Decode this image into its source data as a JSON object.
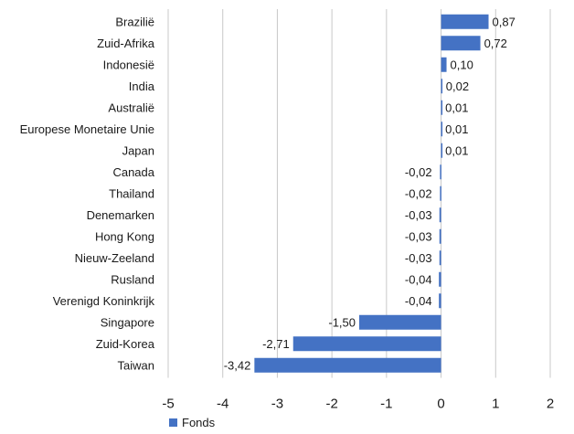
{
  "chart_data": {
    "type": "bar",
    "orientation": "horizontal",
    "categories": [
      "Brazilië",
      "Zuid-Afrika",
      "Indonesië",
      "India",
      "Australië",
      "Europese Monetaire Unie",
      "Japan",
      "Canada",
      "Thailand",
      "Denemarken",
      "Hong Kong",
      "Nieuw-Zeeland",
      "Rusland",
      "Verenigd Koninkrijk",
      "Singapore",
      "Zuid-Korea",
      "Taiwan"
    ],
    "series": [
      {
        "name": "Fonds",
        "color": "#4472c4",
        "values": [
          0.87,
          0.72,
          0.1,
          0.02,
          0.01,
          0.01,
          0.01,
          -0.02,
          -0.02,
          -0.03,
          -0.03,
          -0.03,
          -0.04,
          -0.04,
          -1.5,
          -2.71,
          -3.42
        ],
        "labels": [
          "0,87",
          "0,72",
          "0,10",
          "0,02",
          "0,01",
          "0,01",
          "0,01",
          "-0,02",
          "-0,02",
          "-0,03",
          "-0,03",
          "-0,03",
          "-0,04",
          "-0,04",
          "-1,50",
          "-2,71",
          "-3,42"
        ]
      }
    ],
    "xlim": [
      -5,
      2
    ],
    "xticks": [
      -5,
      -4,
      -3,
      -2,
      -1,
      0,
      1,
      2
    ],
    "xtick_labels": [
      "-5",
      "-4",
      "-3",
      "-2",
      "-1",
      "0",
      "1",
      "2"
    ],
    "grid": "vertical",
    "legend_position": "bottom-left"
  }
}
